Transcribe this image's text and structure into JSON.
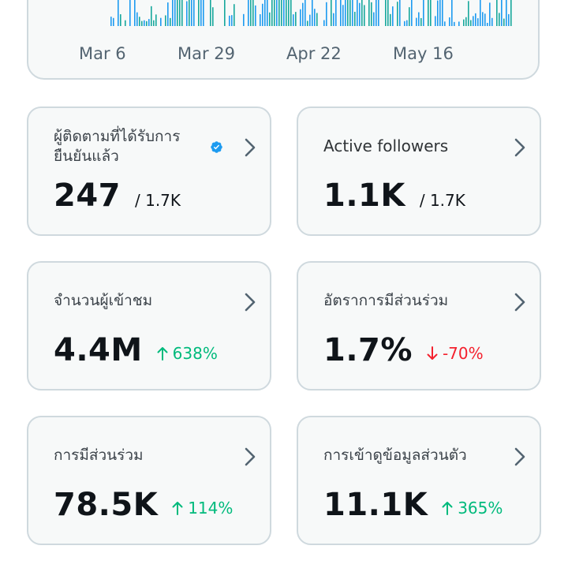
{
  "chart": {
    "axis_labels": [
      "Mar 6",
      "Mar 29",
      "Apr 22",
      "May 16"
    ],
    "bar_color": "#1d9bf0",
    "accent_color": "#00ba7c"
  },
  "cards": [
    {
      "label": "ผู้ติดตามที่ได้รับการยืนยันแล้ว",
      "value": "247",
      "secondary": "/ 1.7K",
      "verified_badge": true
    },
    {
      "label": "Active followers",
      "value": "1.1K",
      "secondary": "/ 1.7K"
    },
    {
      "label": "จำนวนผู้เข้าชม",
      "value": "4.4M",
      "delta": "638%",
      "direction": "up"
    },
    {
      "label": "อัตราการมีส่วนร่วม",
      "value": "1.7%",
      "delta": "-70%",
      "direction": "down"
    },
    {
      "label": "การมีส่วนร่วม",
      "value": "78.5K",
      "delta": "114%",
      "direction": "up"
    },
    {
      "label": "การเข้าดูข้อมูลส่วนตัว",
      "value": "11.1K",
      "delta": "365%",
      "direction": "up"
    }
  ],
  "icons": {
    "chevron": "chevron-right-icon",
    "verified": "verified-badge-icon",
    "up": "arrow-up-icon",
    "down": "arrow-down-icon"
  },
  "colors": {
    "card_bg": "#f7f9f9",
    "card_border": "#cfd9de",
    "up": "#00ba7c",
    "down": "#f4212e",
    "verified": "#1d9bf0",
    "chevron": "#536471"
  }
}
